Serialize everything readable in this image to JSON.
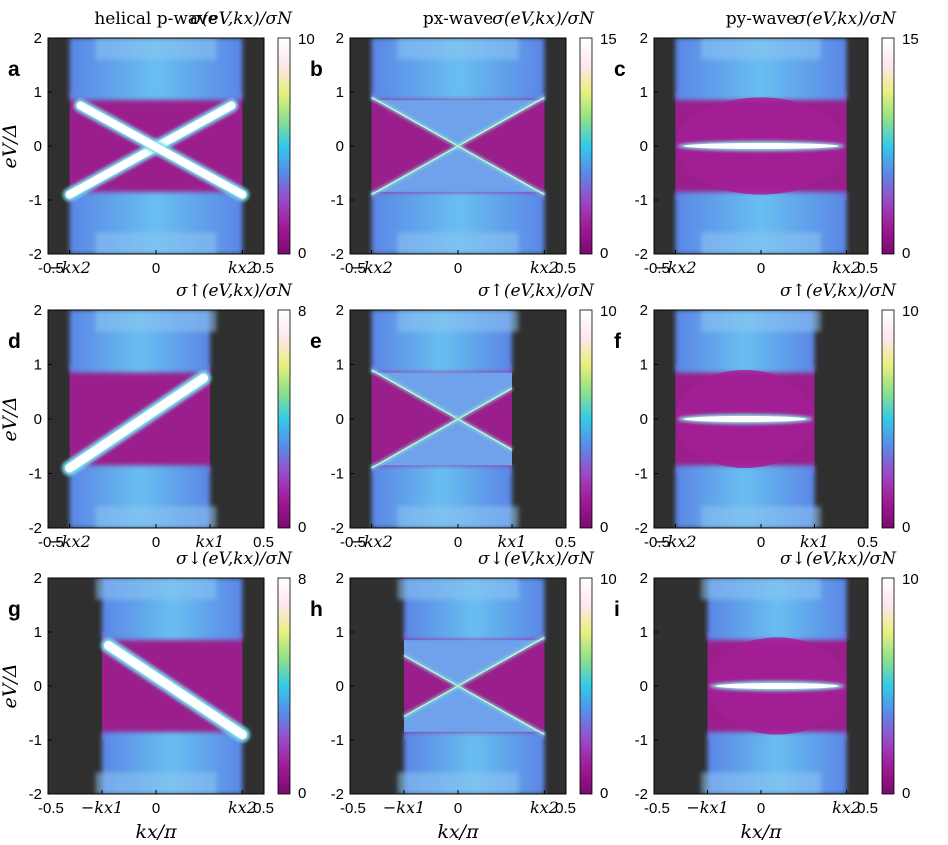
{
  "figure": {
    "column_titles": [
      "helical p-wave",
      "px-wave",
      "py-wave"
    ],
    "y_label": "eV/Δ",
    "x_label": "kx/π"
  },
  "colors": {
    "background_region": "#2f2f2f",
    "colormap": [
      "#7a0a6e",
      "#a01b95",
      "#9a4ac6",
      "#5a8ae8",
      "#35c9e8",
      "#8fe08a",
      "#e8f080",
      "#ffe6f0",
      "#ffffff"
    ]
  },
  "chart_data": [
    {
      "panel": "a",
      "type": "heatmap",
      "component": "total",
      "title": "helical p-wave",
      "colorbar_label": "σ(eV,kx)/σN",
      "colorbar_ticks": [
        "10",
        "0"
      ],
      "cmax": 10,
      "xlim": [
        -0.5,
        0.5
      ],
      "ylim": [
        -2,
        2
      ],
      "x_ticks": [
        "-0.5",
        "−kx2",
        "0",
        "kx2",
        "0.5"
      ],
      "y_ticks": [
        "2",
        "1",
        "0",
        "-1",
        "-2"
      ],
      "kx2": 0.4,
      "feature": "x-crossing",
      "show_ylabel": true,
      "show_xlabel": false
    },
    {
      "panel": "b",
      "type": "heatmap",
      "component": "total",
      "title": "px-wave",
      "colorbar_label": "σ(eV,kx)/σN",
      "colorbar_ticks": [
        "15",
        "0"
      ],
      "cmax": 15,
      "xlim": [
        -0.5,
        0.5
      ],
      "ylim": [
        -2,
        2
      ],
      "x_ticks": [
        "-0.5",
        "−kx2",
        "0",
        "kx2",
        "0.5"
      ],
      "y_ticks": [
        "2",
        "1",
        "0",
        "-1",
        "-2"
      ],
      "kx2": 0.4,
      "feature": "bow-tie",
      "show_ylabel": false,
      "show_xlabel": false
    },
    {
      "panel": "c",
      "type": "heatmap",
      "component": "total",
      "title": "py-wave",
      "colorbar_label": "σ(eV,kx)/σN",
      "colorbar_ticks": [
        "15",
        "0"
      ],
      "cmax": 15,
      "xlim": [
        -0.5,
        0.5
      ],
      "ylim": [
        -2,
        2
      ],
      "x_ticks": [
        "-0.5",
        "−kx2",
        "0",
        "kx2",
        "0.5"
      ],
      "y_ticks": [
        "2",
        "1",
        "0",
        "-1",
        "-2"
      ],
      "kx2": 0.4,
      "feature": "flat-band",
      "show_ylabel": false,
      "show_xlabel": false
    },
    {
      "panel": "d",
      "type": "heatmap",
      "component": "up",
      "title": "",
      "colorbar_label": "σ↑(eV,kx)/σN",
      "colorbar_ticks": [
        "8",
        "0"
      ],
      "cmax": 8,
      "xlim": [
        -0.5,
        0.5
      ],
      "ylim": [
        -2,
        2
      ],
      "x_ticks": [
        "-0.5",
        "−kx2",
        "0",
        "kx1",
        "0.5"
      ],
      "y_ticks": [
        "2",
        "1",
        "0",
        "-1",
        "-2"
      ],
      "kx2": 0.4,
      "kx1": 0.25,
      "feature": "rising-diagonal",
      "show_ylabel": true,
      "show_xlabel": false
    },
    {
      "panel": "e",
      "type": "heatmap",
      "component": "up",
      "title": "",
      "colorbar_label": "σ↑(eV,kx)/σN",
      "colorbar_ticks": [
        "10",
        "0"
      ],
      "cmax": 10,
      "xlim": [
        -0.5,
        0.5
      ],
      "ylim": [
        -2,
        2
      ],
      "x_ticks": [
        "-0.5",
        "−kx2",
        "0",
        "kx1",
        "0.5"
      ],
      "y_ticks": [
        "2",
        "1",
        "0",
        "-1",
        "-2"
      ],
      "kx2": 0.4,
      "kx1": 0.25,
      "feature": "bow-tie",
      "show_ylabel": false,
      "show_xlabel": false
    },
    {
      "panel": "f",
      "type": "heatmap",
      "component": "up",
      "title": "",
      "colorbar_label": "σ↑(eV,kx)/σN",
      "colorbar_ticks": [
        "10",
        "0"
      ],
      "cmax": 10,
      "xlim": [
        -0.5,
        0.5
      ],
      "ylim": [
        -2,
        2
      ],
      "x_ticks": [
        "-0.5",
        "−kx2",
        "0",
        "kx1",
        "0.5"
      ],
      "y_ticks": [
        "2",
        "1",
        "0",
        "-1",
        "-2"
      ],
      "kx2": 0.4,
      "kx1": 0.25,
      "feature": "flat-band",
      "show_ylabel": false,
      "show_xlabel": false
    },
    {
      "panel": "g",
      "type": "heatmap",
      "component": "down",
      "title": "",
      "colorbar_label": "σ↓(eV,kx)/σN",
      "colorbar_ticks": [
        "8",
        "0"
      ],
      "cmax": 8,
      "xlim": [
        -0.5,
        0.5
      ],
      "ylim": [
        -2,
        2
      ],
      "x_ticks": [
        "-0.5",
        "−kx1",
        "0",
        "kx2",
        "0.5"
      ],
      "y_ticks": [
        "2",
        "1",
        "0",
        "-1",
        "-2"
      ],
      "kx2": 0.4,
      "kx1": 0.25,
      "feature": "falling-diagonal",
      "show_ylabel": true,
      "show_xlabel": true
    },
    {
      "panel": "h",
      "type": "heatmap",
      "component": "down",
      "title": "",
      "colorbar_label": "σ↓(eV,kx)/σN",
      "colorbar_ticks": [
        "10",
        "0"
      ],
      "cmax": 10,
      "xlim": [
        -0.5,
        0.5
      ],
      "ylim": [
        -2,
        2
      ],
      "x_ticks": [
        "-0.5",
        "−kx1",
        "0",
        "kx2",
        "0.5"
      ],
      "y_ticks": [
        "2",
        "1",
        "0",
        "-1",
        "-2"
      ],
      "kx2": 0.4,
      "kx1": 0.25,
      "feature": "bow-tie",
      "show_ylabel": false,
      "show_xlabel": true
    },
    {
      "panel": "i",
      "type": "heatmap",
      "component": "down",
      "title": "",
      "colorbar_label": "σ↓(eV,kx)/σN",
      "colorbar_ticks": [
        "10",
        "0"
      ],
      "cmax": 10,
      "xlim": [
        -0.5,
        0.5
      ],
      "ylim": [
        -2,
        2
      ],
      "x_ticks": [
        "-0.5",
        "−kx1",
        "0",
        "kx2",
        "0.5"
      ],
      "y_ticks": [
        "2",
        "1",
        "0",
        "-1",
        "-2"
      ],
      "kx2": 0.4,
      "kx1": 0.25,
      "feature": "flat-band",
      "show_ylabel": false,
      "show_xlabel": true
    }
  ]
}
